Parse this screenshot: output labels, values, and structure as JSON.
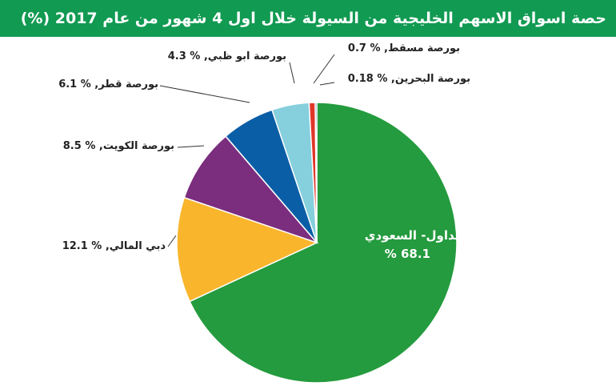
{
  "chart_data": {
    "type": "pie",
    "title": "حصة اسواق الاسهم الخليجية من السيولة خلال اول 4 شهور من عام 2017 (%)",
    "unit": "%",
    "start_angle_deg": 90,
    "direction": "clockwise",
    "slices": [
      {
        "name": "تداول- السعودي",
        "value": 68.1,
        "value_text": "% 68.1",
        "color": "#249b3e"
      },
      {
        "name": "دبي المالي",
        "value": 12.1,
        "value_text": "% 12.1",
        "color": "#f9b52c"
      },
      {
        "name": "بورصة الكويت",
        "value": 8.5,
        "value_text": "% 8.5",
        "color": "#7b2d7e"
      },
      {
        "name": "بورصة قطر",
        "value": 6.1,
        "value_text": "% 6.1",
        "color": "#0a5ea6"
      },
      {
        "name": "بورصة ابو ظبي",
        "value": 4.3,
        "value_text": "% 4.3",
        "color": "#86cfdd"
      },
      {
        "name": "بورصة مسقط",
        "value": 0.7,
        "value_text": "% 0.7",
        "color": "#e0362a"
      },
      {
        "name": "بورصة البحرين",
        "value": 0.18,
        "value_text": "% 0.18",
        "color": "#1f4f8c"
      }
    ]
  }
}
